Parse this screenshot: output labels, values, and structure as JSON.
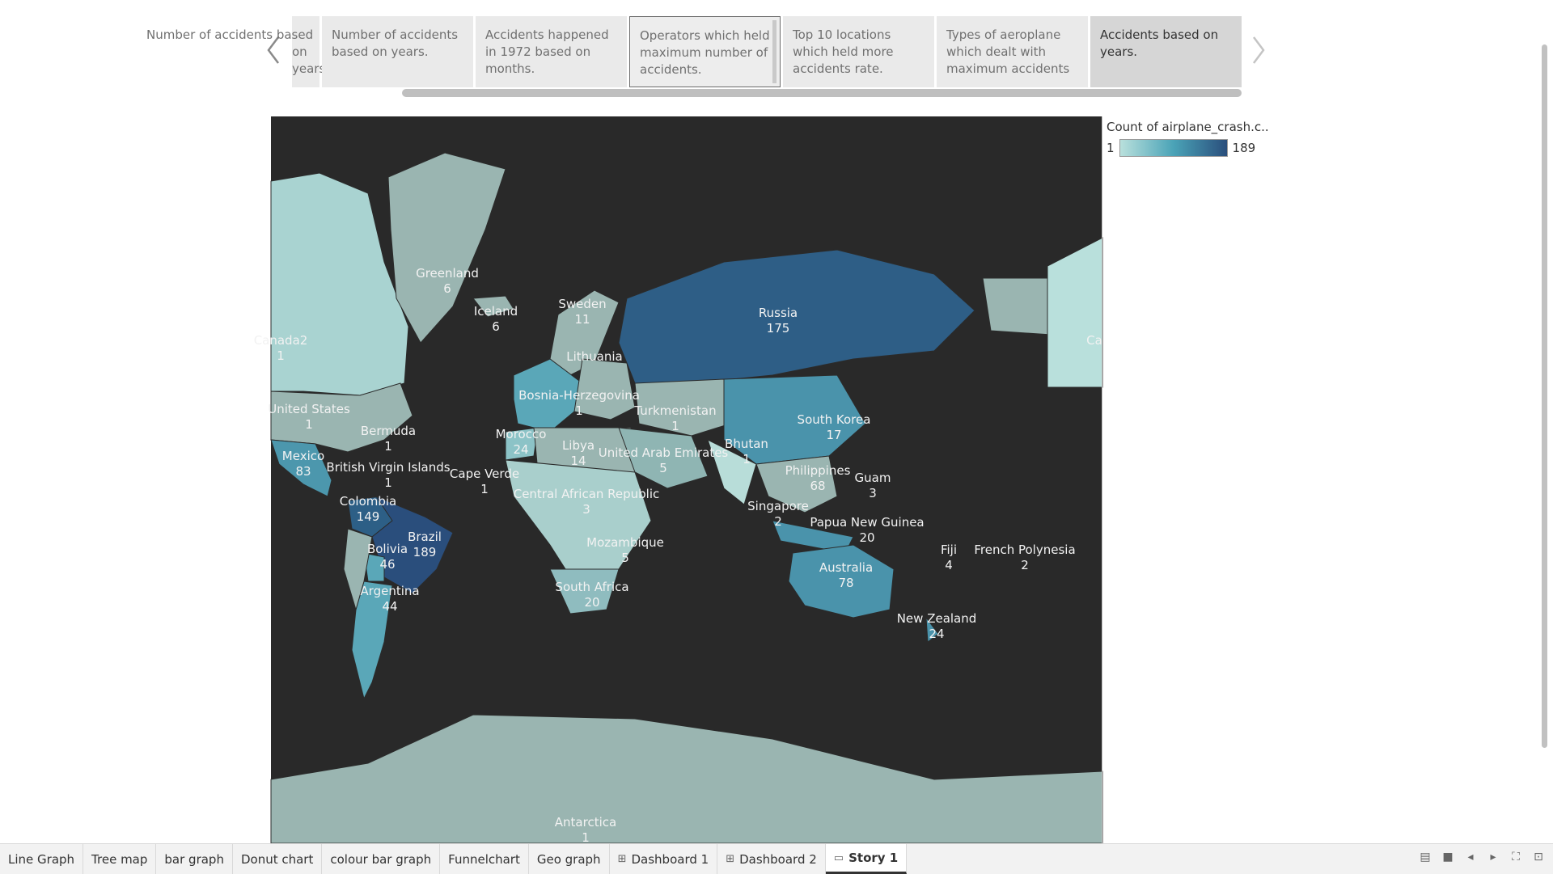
{
  "story": {
    "points": [
      {
        "label": "Number of accidents based on years.",
        "state": "cut"
      },
      {
        "label": "Number of accidents based on years.",
        "state": "normal"
      },
      {
        "label": "Accidents happened in 1972 based on months.",
        "state": "normal"
      },
      {
        "label": "Operators which held maximum number of accidents.",
        "state": "outlined"
      },
      {
        "label": "Top 10 locations which held more accidents rate.",
        "state": "normal"
      },
      {
        "label": "Types of aeroplane which dealt with maximum accidents",
        "state": "normal"
      },
      {
        "label": "Accidents based on years.",
        "state": "active"
      }
    ]
  },
  "legend": {
    "title": "Count of airplane_crash.c..",
    "min": "1",
    "max": "189",
    "colors": [
      "#b9e0dc",
      "#4aa3b7",
      "#2a4e7c"
    ]
  },
  "map_labels": [
    {
      "name": "Greenland",
      "value": "6"
    },
    {
      "name": "Iceland",
      "value": "6"
    },
    {
      "name": "Sweden",
      "value": "11"
    },
    {
      "name": "Russia",
      "value": "175"
    },
    {
      "name": "Canada2",
      "value": "1"
    },
    {
      "name": "Ca",
      "value": ""
    },
    {
      "name": "Lithuania",
      "value": ""
    },
    {
      "name": "Bosnia-Herzegovina",
      "value": "1"
    },
    {
      "name": "United States",
      "value": "1"
    },
    {
      "name": "Bermuda",
      "value": "1"
    },
    {
      "name": "Morocco",
      "value": "24"
    },
    {
      "name": "Libya",
      "value": "14"
    },
    {
      "name": "Turkmenistan",
      "value": "1"
    },
    {
      "name": "South Korea",
      "value": "17"
    },
    {
      "name": "United Arab Emirates",
      "value": "5"
    },
    {
      "name": "Bhutan",
      "value": "1"
    },
    {
      "name": "Mexico",
      "value": "83"
    },
    {
      "name": "British Virgin Islands",
      "value": "1"
    },
    {
      "name": "Cape Verde",
      "value": "1"
    },
    {
      "name": "Philippines",
      "value": "68"
    },
    {
      "name": "Guam",
      "value": "3"
    },
    {
      "name": "Central African Republic",
      "value": "3"
    },
    {
      "name": "Colombia",
      "value": "149"
    },
    {
      "name": "Singapore",
      "value": "2"
    },
    {
      "name": "Papua New Guinea",
      "value": "20"
    },
    {
      "name": "Brazil",
      "value": "189"
    },
    {
      "name": "Mozambique",
      "value": "5"
    },
    {
      "name": "Bolivia",
      "value": "46"
    },
    {
      "name": "Fiji",
      "value": "4"
    },
    {
      "name": "French Polynesia",
      "value": "2"
    },
    {
      "name": "Australia",
      "value": "78"
    },
    {
      "name": "Argentina",
      "value": "44"
    },
    {
      "name": "South Africa",
      "value": "20"
    },
    {
      "name": "New Zealand",
      "value": "24"
    },
    {
      "name": "Antarctica",
      "value": "1"
    }
  ],
  "tabs": [
    {
      "label": "Line Graph",
      "icon": ""
    },
    {
      "label": "Tree map",
      "icon": ""
    },
    {
      "label": "bar graph",
      "icon": ""
    },
    {
      "label": "Donut chart",
      "icon": ""
    },
    {
      "label": "colour bar graph",
      "icon": ""
    },
    {
      "label": "Funnelchart",
      "icon": ""
    },
    {
      "label": "Geo graph",
      "icon": ""
    },
    {
      "label": "Dashboard 1",
      "icon": "dashboard-icon"
    },
    {
      "label": "Dashboard 2",
      "icon": "dashboard-icon"
    },
    {
      "label": "Story 1",
      "icon": "story-icon",
      "active": true
    }
  ]
}
